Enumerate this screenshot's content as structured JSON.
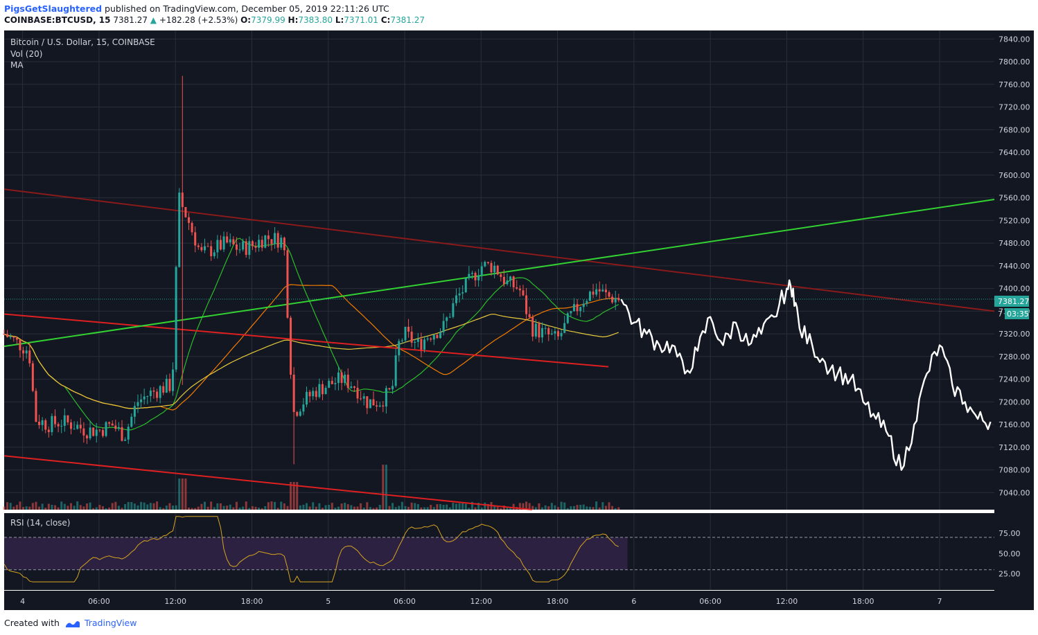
{
  "header": {
    "author": "PigsGetSlaughtered",
    "published_text": "published on TradingView.com, December 05, 2019 22:11:26 UTC",
    "symbol": "COINBASE:BTCUSD, 15",
    "price": "7381.27",
    "change_arrow": "▲",
    "change": "+182.28 (+2.53%)",
    "o_label": "O:",
    "o_value": "7379.99",
    "h_label": "H:",
    "h_value": "7383.80",
    "l_label": "L:",
    "l_value": "7371.01",
    "c_label": "C:",
    "c_value": "7381.27"
  },
  "legend": {
    "title": "Bitcoin / U.S. Dollar, 15, COINBASE",
    "vol": "Vol (20)",
    "ma": "MA",
    "rsi": "RSI (14, close)"
  },
  "price_badge": {
    "value": "7381.27",
    "countdown": "03:35",
    "partial": "7"
  },
  "footer": {
    "created_with": "Created with",
    "brand": "TradingView"
  },
  "colors": {
    "background": "#131722",
    "grid": "#2a2e39",
    "up": "#26a69a",
    "down": "#ef5350",
    "trend_red": "#e02020",
    "trend_darkred": "#8b1a1a",
    "trend_green": "#32d232",
    "ma_green": "#2bbd2b",
    "ma_orange": "#f57c00",
    "ma_yellow": "#e6c83c",
    "projection": "#ffffff",
    "rsi_line": "#d8a520",
    "rsi_band": "#2c2140",
    "badge": "#26a69a"
  },
  "chart_data": {
    "type": "candlestick",
    "price_ticks": [
      7040,
      7080,
      7120,
      7160,
      7200,
      7240,
      7280,
      7320,
      7360,
      7400,
      7440,
      7480,
      7520,
      7560,
      7600,
      7640,
      7680,
      7720,
      7760,
      7800,
      7840
    ],
    "price_tick_labels": [
      "7040.00",
      "7080.00",
      "7120.00",
      "7160.00",
      "7200.00",
      "7240.00",
      "7280.00",
      "7320.00",
      "7360.00",
      "7400.00",
      "7440.00",
      "7480.00",
      "7520.00",
      "7560.00",
      "7600.00",
      "7640.00",
      "7680.00",
      "7720.00",
      "7760.00",
      "7800.00",
      "7840.00"
    ],
    "ylim": [
      7010,
      7855
    ],
    "time_labels": [
      "4",
      "06:00",
      "12:00",
      "18:00",
      "5",
      "06:00",
      "12:00",
      "18:00",
      "6",
      "06:00",
      "12:00",
      "18:00",
      "7"
    ],
    "time_label_hours": [
      0,
      6,
      12,
      18,
      24,
      30,
      36,
      42,
      48,
      54,
      60,
      66,
      72
    ],
    "xlim_hours": [
      -1.45,
      76.3
    ],
    "last_price": 7381.27,
    "candles_hours_price": [
      [
        -1.45,
        7320
      ],
      [
        0.5,
        7290
      ],
      [
        1,
        7170
      ],
      [
        2,
        7160
      ],
      [
        3,
        7165
      ],
      [
        4,
        7160
      ],
      [
        5,
        7150
      ],
      [
        6,
        7150
      ],
      [
        7,
        7160
      ],
      [
        8,
        7140
      ],
      [
        9,
        7200
      ],
      [
        10,
        7215
      ],
      [
        11,
        7225
      ],
      [
        11.75,
        7230
      ],
      [
        12.25,
        7560
      ],
      [
        13,
        7520
      ],
      [
        14,
        7460
      ],
      [
        15,
        7470
      ],
      [
        16,
        7480
      ],
      [
        17,
        7470
      ],
      [
        18,
        7475
      ],
      [
        19,
        7490
      ],
      [
        20.5,
        7485
      ],
      [
        21.25,
        7180
      ],
      [
        22,
        7200
      ],
      [
        23,
        7220
      ],
      [
        24,
        7230
      ],
      [
        25,
        7240
      ],
      [
        26,
        7230
      ],
      [
        27,
        7200
      ],
      [
        28,
        7200
      ],
      [
        29,
        7220
      ],
      [
        29.5,
        7300
      ],
      [
        30,
        7320
      ],
      [
        31,
        7300
      ],
      [
        32,
        7320
      ],
      [
        33,
        7330
      ],
      [
        34,
        7380
      ],
      [
        35,
        7410
      ],
      [
        36,
        7440
      ],
      [
        37,
        7440
      ],
      [
        38,
        7410
      ],
      [
        39,
        7400
      ],
      [
        40,
        7330
      ],
      [
        41,
        7320
      ],
      [
        42,
        7310
      ],
      [
        43,
        7350
      ],
      [
        44,
        7380
      ],
      [
        45,
        7400
      ],
      [
        46,
        7385
      ],
      [
        47,
        7381
      ]
    ],
    "projection_hours_price": [
      [
        47,
        7381
      ],
      [
        48,
        7340
      ],
      [
        49,
        7320
      ],
      [
        50,
        7300
      ],
      [
        51,
        7300
      ],
      [
        52,
        7250
      ],
      [
        53,
        7290
      ],
      [
        54,
        7350
      ],
      [
        55,
        7300
      ],
      [
        56,
        7340
      ],
      [
        57,
        7300
      ],
      [
        58,
        7320
      ],
      [
        59,
        7350
      ],
      [
        60,
        7400
      ],
      [
        60.5,
        7400
      ],
      [
        61,
        7330
      ],
      [
        62,
        7300
      ],
      [
        63,
        7270
      ],
      [
        64,
        7250
      ],
      [
        65,
        7240
      ],
      [
        66,
        7200
      ],
      [
        67,
        7170
      ],
      [
        68,
        7140
      ],
      [
        69,
        7080
      ],
      [
        70,
        7160
      ],
      [
        71,
        7250
      ],
      [
        72,
        7300
      ],
      [
        73,
        7230
      ],
      [
        74,
        7200
      ],
      [
        75,
        7170
      ],
      [
        76,
        7165
      ]
    ],
    "trendlines_hours_price": [
      {
        "color": "red",
        "points": [
          [
            -1.45,
            7355
          ],
          [
            46,
            7262
          ]
        ]
      },
      {
        "color": "red",
        "points": [
          [
            -1.45,
            7105
          ],
          [
            40,
            7010
          ]
        ]
      },
      {
        "color": "darkred",
        "points": [
          [
            -1.45,
            7575
          ],
          [
            76.3,
            7360
          ]
        ]
      },
      {
        "color": "green",
        "points": [
          [
            -1.45,
            7298
          ],
          [
            76.3,
            7557
          ]
        ]
      }
    ],
    "rsi_ticks": [
      25,
      50,
      75
    ],
    "rsi_tick_labels": [
      "25.00",
      "50.00",
      "75.00"
    ],
    "rsi_band": [
      30,
      70
    ],
    "rsi_ylim": [
      5,
      100
    ]
  }
}
